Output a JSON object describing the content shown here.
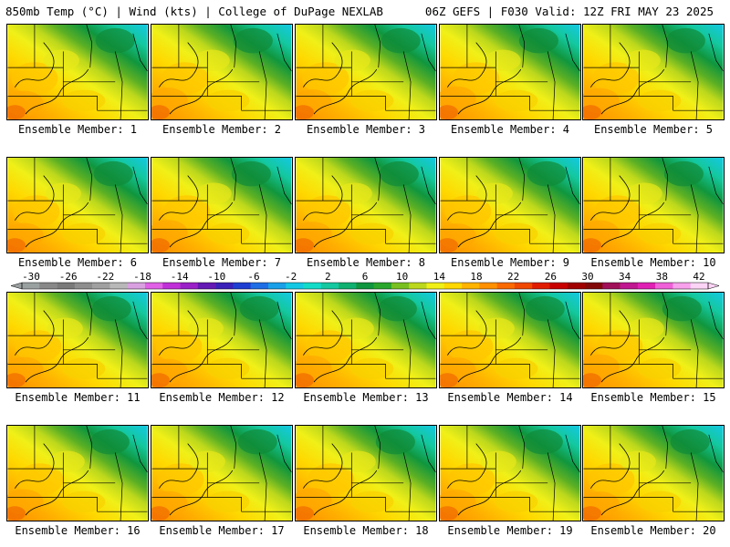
{
  "header": {
    "left": "850mb Temp (°C) | Wind (kts) | College of DuPage NEXLAB",
    "right": "06Z GEFS | F030 Valid: 12Z FRI MAY 23 2025"
  },
  "panels": [
    {
      "label": "Ensemble Member: 1"
    },
    {
      "label": "Ensemble Member: 2"
    },
    {
      "label": "Ensemble Member: 3"
    },
    {
      "label": "Ensemble Member: 4"
    },
    {
      "label": "Ensemble Member: 5"
    },
    {
      "label": "Ensemble Member: 6"
    },
    {
      "label": "Ensemble Member: 7"
    },
    {
      "label": "Ensemble Member: 8"
    },
    {
      "label": "Ensemble Member: 9"
    },
    {
      "label": "Ensemble Member: 10"
    },
    {
      "label": "Ensemble Member: 11"
    },
    {
      "label": "Ensemble Member: 12"
    },
    {
      "label": "Ensemble Member: 13"
    },
    {
      "label": "Ensemble Member: 14"
    },
    {
      "label": "Ensemble Member: 15"
    },
    {
      "label": "Ensemble Member: 16"
    },
    {
      "label": "Ensemble Member: 17"
    },
    {
      "label": "Ensemble Member: 18"
    },
    {
      "label": "Ensemble Member: 19"
    },
    {
      "label": "Ensemble Member: 20"
    }
  ],
  "colorbar": {
    "tick_labels": [
      "-30",
      "-26",
      "-22",
      "-18",
      "-14",
      "-10",
      "-6",
      "-2",
      "2",
      "6",
      "10",
      "14",
      "18",
      "22",
      "26",
      "30",
      "34",
      "38",
      "42"
    ],
    "colors": [
      "#9aa0a0",
      "#888888",
      "#7a7a7a",
      "#8e8e8e",
      "#a0a0a0",
      "#b8b8b8",
      "#d9a0e0",
      "#e060e6",
      "#c030d8",
      "#9a20c8",
      "#6418b4",
      "#3a20b8",
      "#1e3ed2",
      "#1f6ee6",
      "#19a0e8",
      "#14c8e4",
      "#12dcc8",
      "#14c8a0",
      "#10b070",
      "#10963e",
      "#2aa62c",
      "#78c020",
      "#bcd81c",
      "#f0f018",
      "#ffd800",
      "#ffb400",
      "#ff9000",
      "#fa6a00",
      "#f04800",
      "#e01c00",
      "#c80000",
      "#a00000",
      "#820808",
      "#a01058",
      "#c01890",
      "#e020b4",
      "#f060d8",
      "#f8a0ec",
      "#fcd4f6"
    ]
  }
}
